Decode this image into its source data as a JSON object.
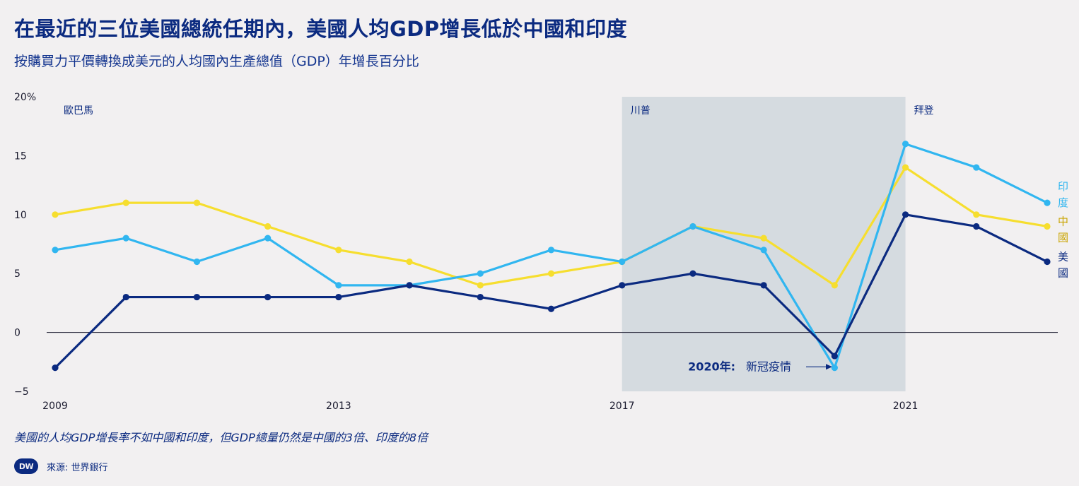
{
  "title": "在最近的三位美國總統任期內，美國人均GDP增長低於中國和印度",
  "subtitle": "按購買力平價轉換成美元的人均國內生產總值（GDP）年增長百分比",
  "footnote": "美國的人均GDP增長率不如中國和印度，但GDP總量仍然是中國的3倍、印度的8倍",
  "source": {
    "logo_text": "DW",
    "label": "來源: 世界銀行"
  },
  "colors": {
    "background": "#f2f0f1",
    "shade": "#d5dbe0",
    "india": "#31b6f0",
    "china": "#f6de2f",
    "usa": "#0b2a80",
    "text": "#0b2a80"
  },
  "chart_data": {
    "type": "line",
    "x": [
      2009,
      2010,
      2011,
      2012,
      2013,
      2014,
      2015,
      2016,
      2017,
      2018,
      2019,
      2020,
      2021,
      2022,
      2023
    ],
    "y_ticks": [
      "20%",
      "15",
      "10",
      "5",
      "0",
      "−5"
    ],
    "y_tick_values": [
      20,
      15,
      10,
      5,
      0,
      -5
    ],
    "x_ticks": [
      "2009",
      "2013",
      "2017",
      "2021"
    ],
    "x_tick_values": [
      2009,
      2013,
      2017,
      2021
    ],
    "ylim": [
      -5,
      20
    ],
    "xlim": [
      2009,
      2023
    ],
    "series": [
      {
        "name": "印度",
        "label_lines": [
          "印",
          "度"
        ],
        "color": "#31b6f0",
        "values": [
          7,
          8,
          6,
          8,
          4,
          4,
          5,
          7,
          6,
          9,
          7,
          -3,
          16,
          14,
          11
        ]
      },
      {
        "name": "中國",
        "label_lines": [
          "中",
          "國"
        ],
        "color": "#f6de2f",
        "values": [
          10,
          11,
          11,
          9,
          7,
          6,
          4,
          5,
          6,
          9,
          8,
          4,
          14,
          10,
          9
        ]
      },
      {
        "name": "美國",
        "label_lines": [
          "美",
          "國"
        ],
        "color": "#0b2a80",
        "values": [
          -3,
          3,
          3,
          3,
          3,
          4,
          3,
          2,
          4,
          5,
          4,
          -2,
          10,
          9,
          6
        ]
      }
    ],
    "presidents": [
      {
        "name": "歐巴馬",
        "start": 2009,
        "end": 2017,
        "shaded": false
      },
      {
        "name": "川普",
        "start": 2017,
        "end": 2021,
        "shaded": true
      },
      {
        "name": "拜登",
        "start": 2021,
        "end": 2023,
        "shaded": false
      }
    ],
    "annotation": {
      "year_label": "2020年:",
      "text": "新冠疫情",
      "x": 2020,
      "y": -2.5
    }
  }
}
